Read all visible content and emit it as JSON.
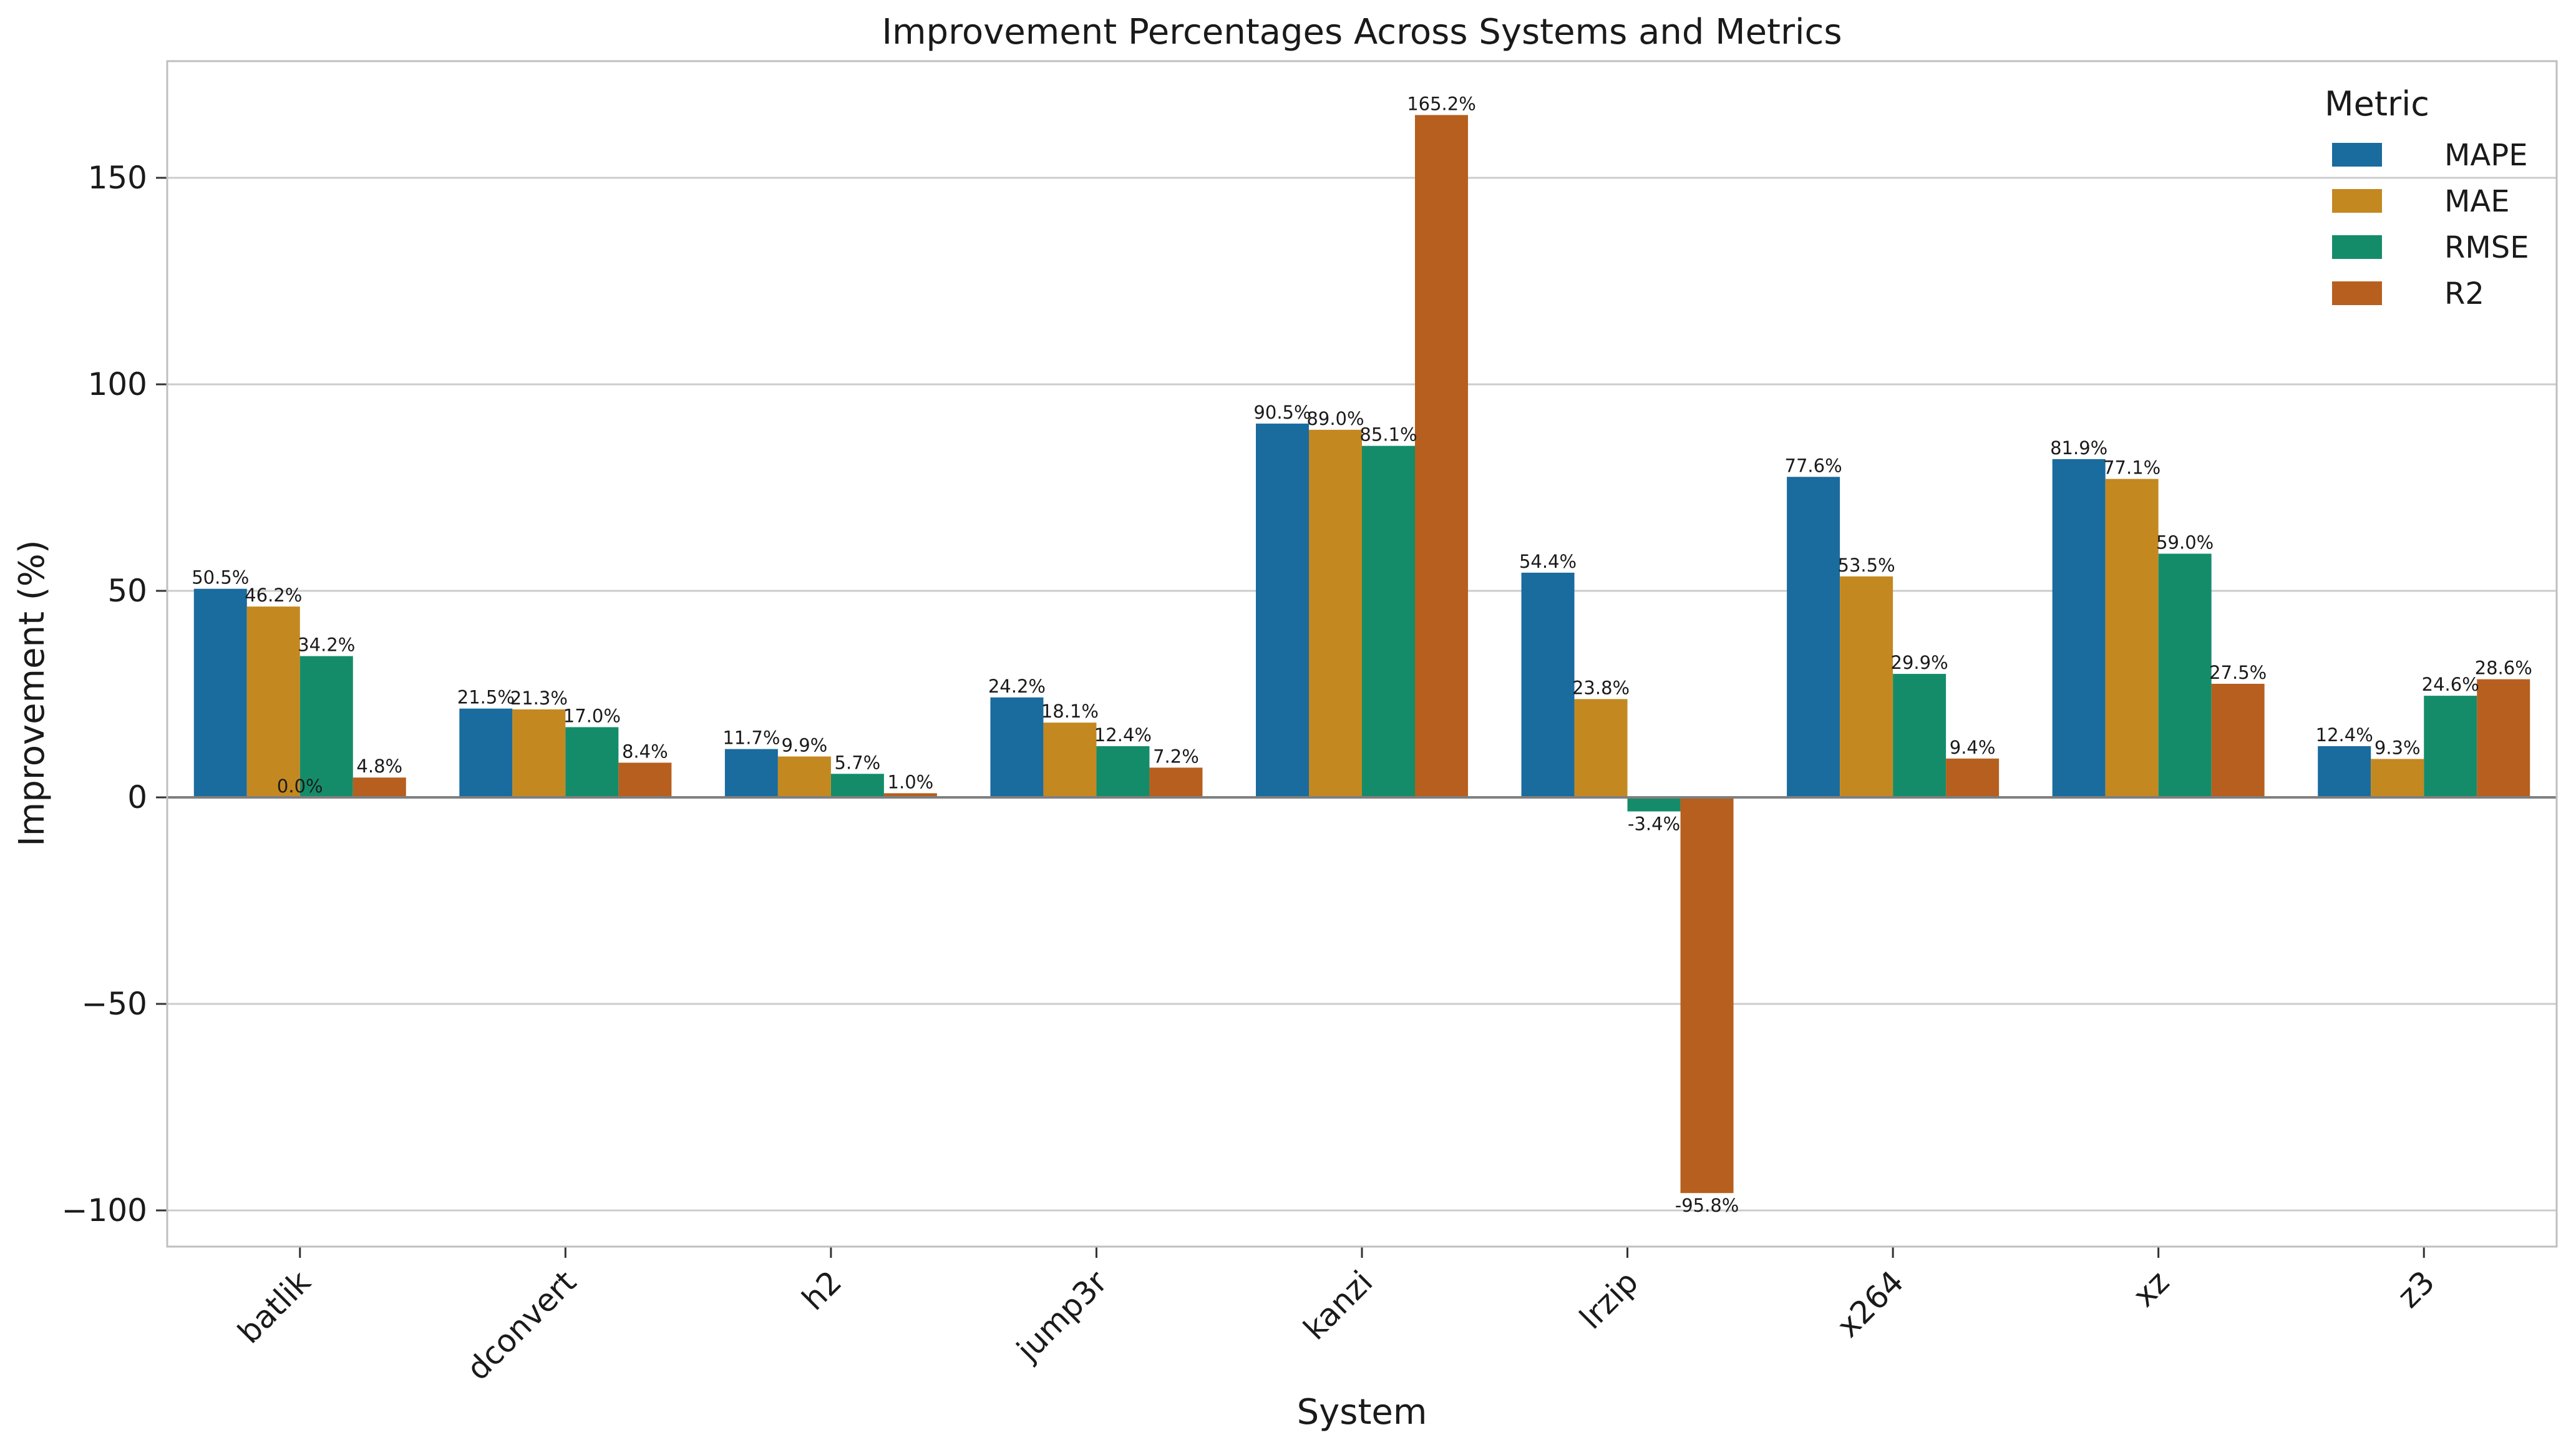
{
  "chart_data": {
    "type": "bar",
    "title": "Improvement Percentages Across Systems and Metrics",
    "xlabel": "System",
    "ylabel": "Improvement (%)",
    "ylim": [
      -109,
      178
    ],
    "yticks": [
      -100,
      -50,
      0,
      50,
      100,
      150
    ],
    "grid": "horizontal",
    "legend_title": "Metric",
    "legend_position": "top-right",
    "categories": [
      "batlik",
      "dconvert",
      "h2",
      "jump3r",
      "kanzi",
      "lrzip",
      "x264",
      "xz",
      "z3"
    ],
    "series": [
      {
        "name": "MAPE",
        "color": "#1a6b9e",
        "values": [
          50.5,
          21.5,
          11.7,
          24.2,
          90.5,
          54.4,
          77.6,
          81.9,
          12.4
        ]
      },
      {
        "name": "MAE",
        "color": "#c48820",
        "values": [
          46.2,
          21.3,
          9.9,
          18.1,
          89.0,
          23.8,
          53.5,
          77.1,
          9.3
        ]
      },
      {
        "name": "RMSE",
        "color": "#148c6a",
        "values": [
          34.2,
          17.0,
          5.7,
          12.4,
          85.1,
          -3.4,
          29.9,
          59.0,
          24.6
        ]
      },
      {
        "name": "R2",
        "color": "#b75f1e",
        "values": [
          4.8,
          8.4,
          1.0,
          7.2,
          165.2,
          -95.8,
          9.4,
          27.5,
          28.6
        ]
      }
    ],
    "annotations": [
      {
        "text": "0.0%",
        "category": "batlik",
        "series": "RMSE",
        "y": 0
      }
    ]
  }
}
